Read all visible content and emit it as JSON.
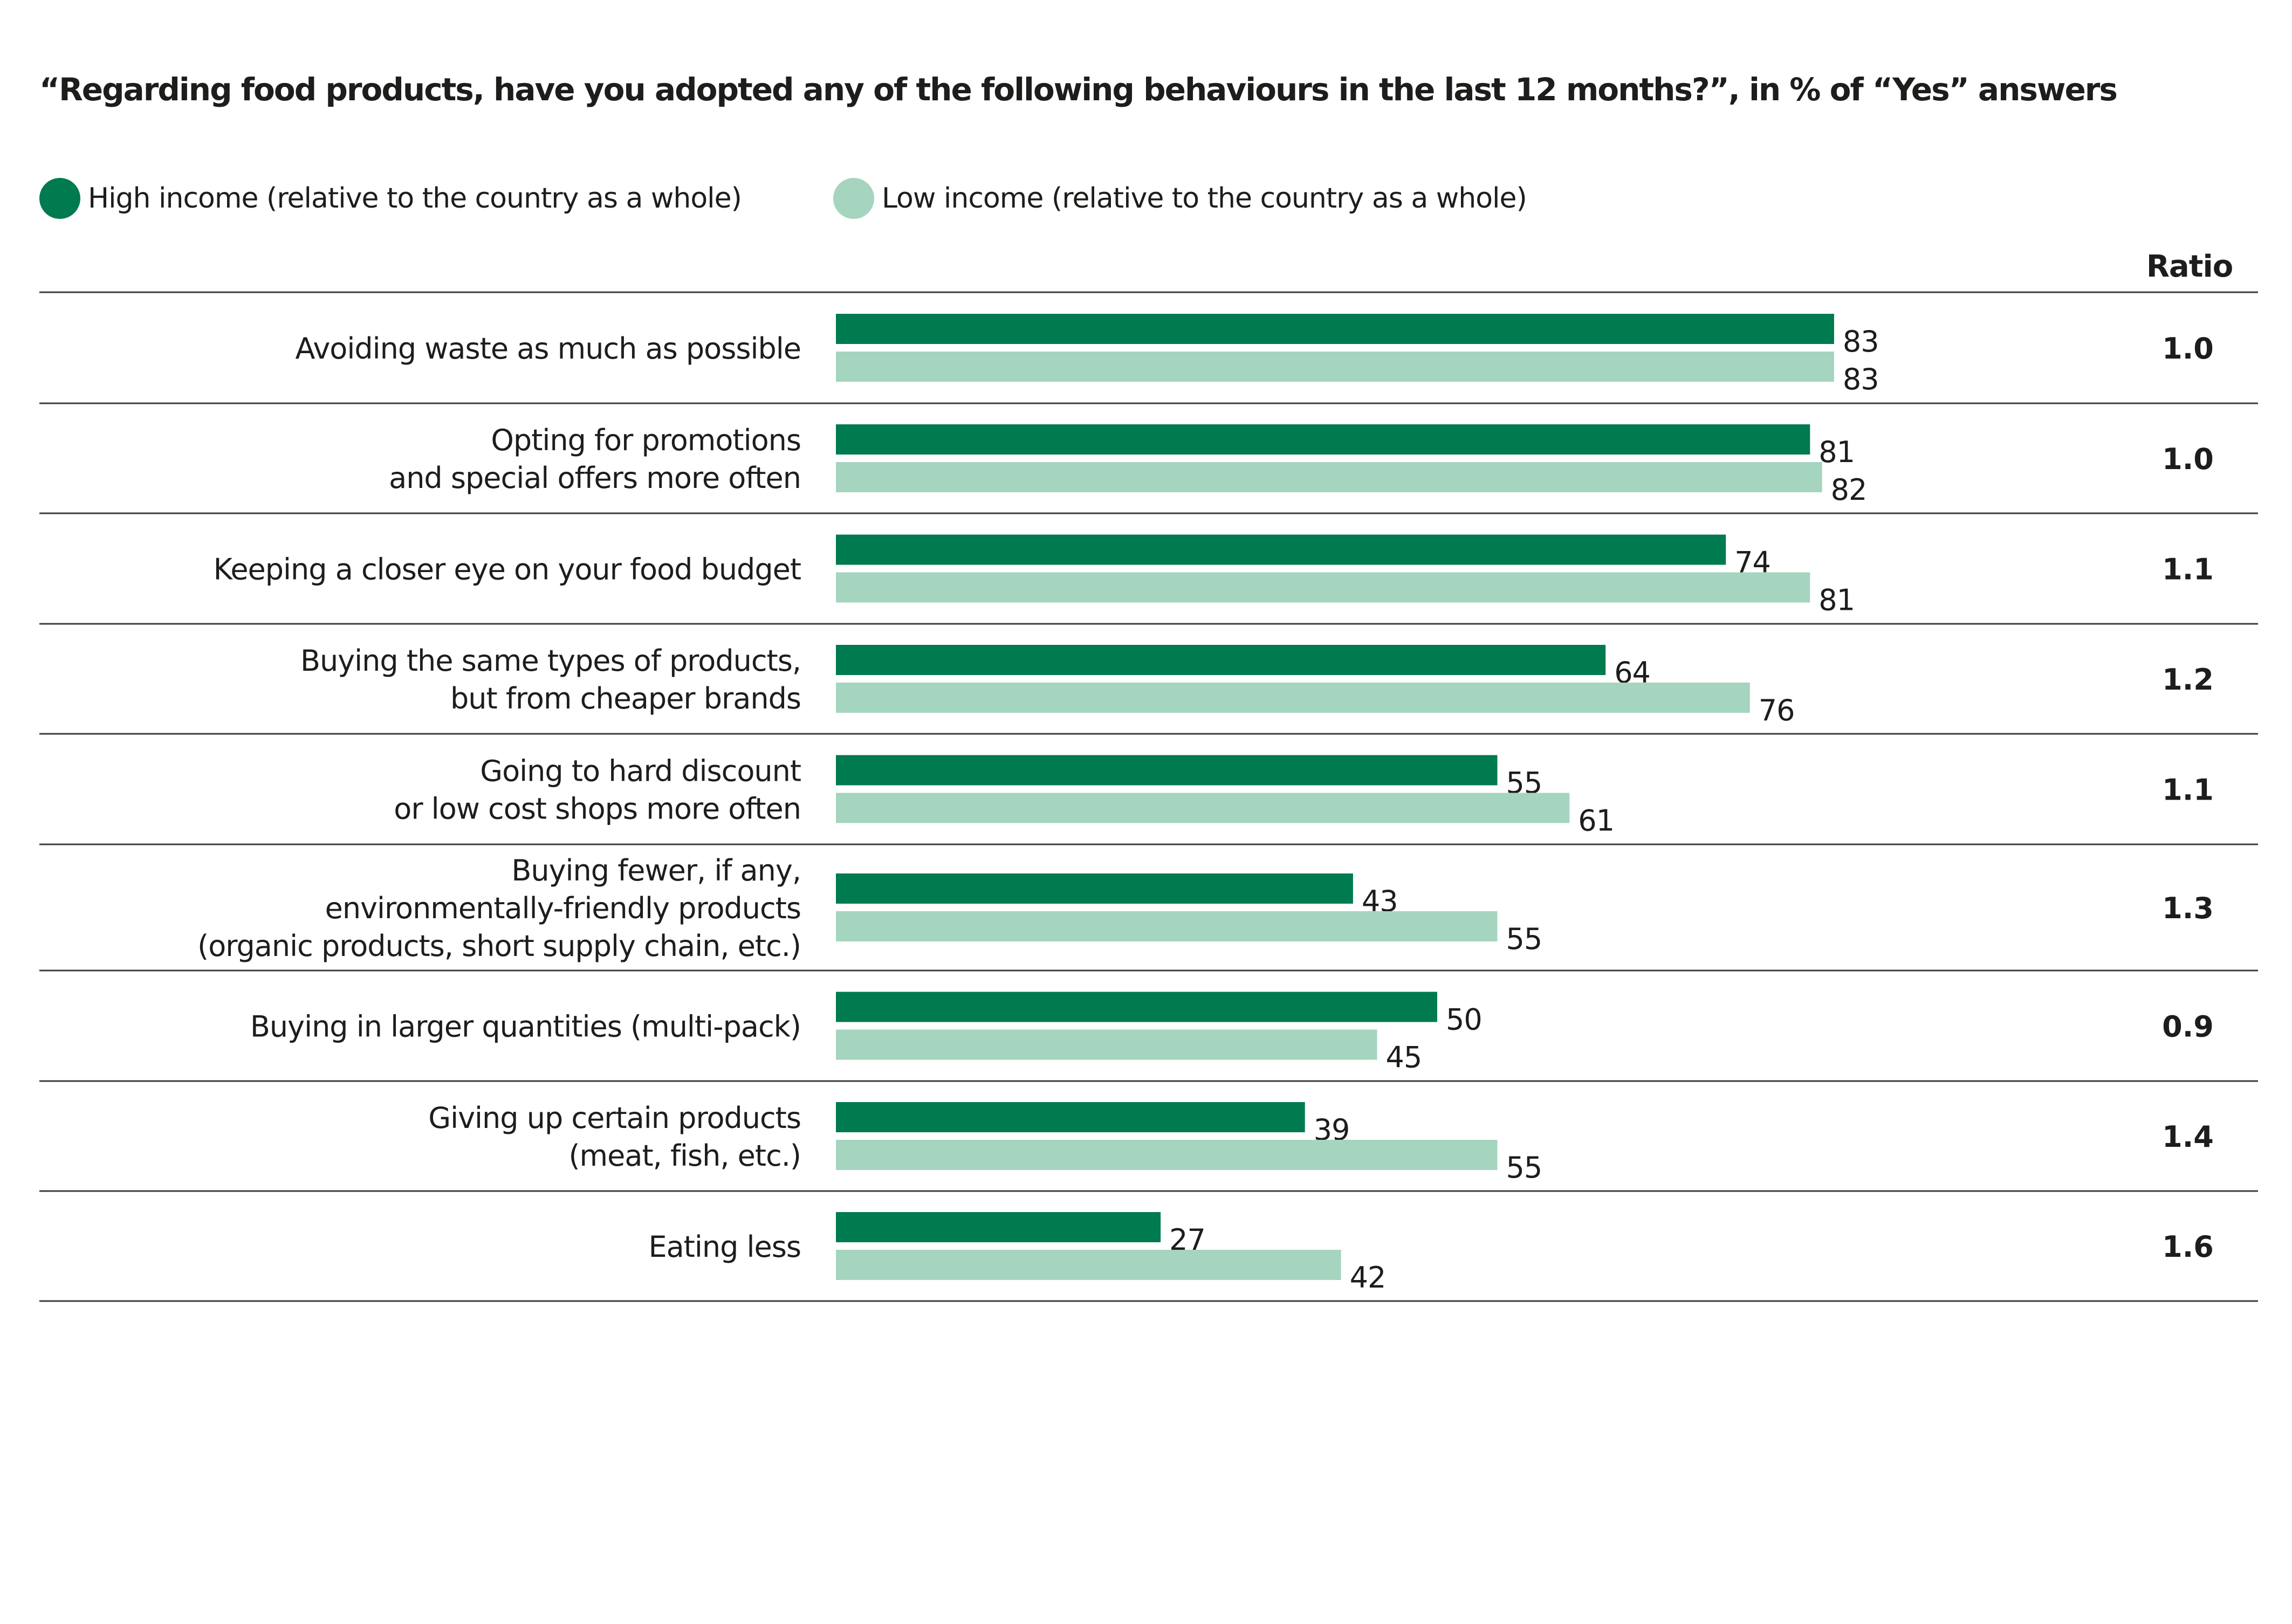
{
  "chart_data": {
    "type": "bar",
    "orientation": "horizontal",
    "title": "“Regarding food products, have you adopted any of the following behaviours in the last 12 months?”, in % of “Yes” answers",
    "xlabel": "",
    "ylabel": "",
    "xlim": [
      0,
      100
    ],
    "grid": false,
    "legend_position": "top-left",
    "ratio_header": "Ratio",
    "categories": [
      [
        "Avoiding waste as much as possible"
      ],
      [
        "Opting for promotions",
        "and special offers more often"
      ],
      [
        "Keeping a closer eye on your food budget"
      ],
      [
        "Buying the same types of products,",
        "but from cheaper brands"
      ],
      [
        "Going to hard discount",
        "or low cost shops more often"
      ],
      [
        "Buying fewer, if any,",
        "environmentally-friendly products",
        "(organic products, short supply chain, etc.)"
      ],
      [
        "Buying in larger quantities (multi-pack)"
      ],
      [
        "Giving up certain products",
        "(meat, fish, etc.)"
      ],
      [
        "Eating less"
      ]
    ],
    "series": [
      {
        "name": "High income (relative to the country as a whole)",
        "color": "#007A4F",
        "values": [
          83,
          81,
          74,
          64,
          55,
          43,
          50,
          39,
          27
        ]
      },
      {
        "name": "Low income (relative to the country as a whole)",
        "color": "#A5D4BF",
        "values": [
          83,
          82,
          81,
          76,
          61,
          55,
          45,
          55,
          42
        ]
      }
    ],
    "ratios": [
      "1.0",
      "1.0",
      "1.1",
      "1.2",
      "1.1",
      "1.3",
      "0.9",
      "1.4",
      "1.6"
    ]
  }
}
